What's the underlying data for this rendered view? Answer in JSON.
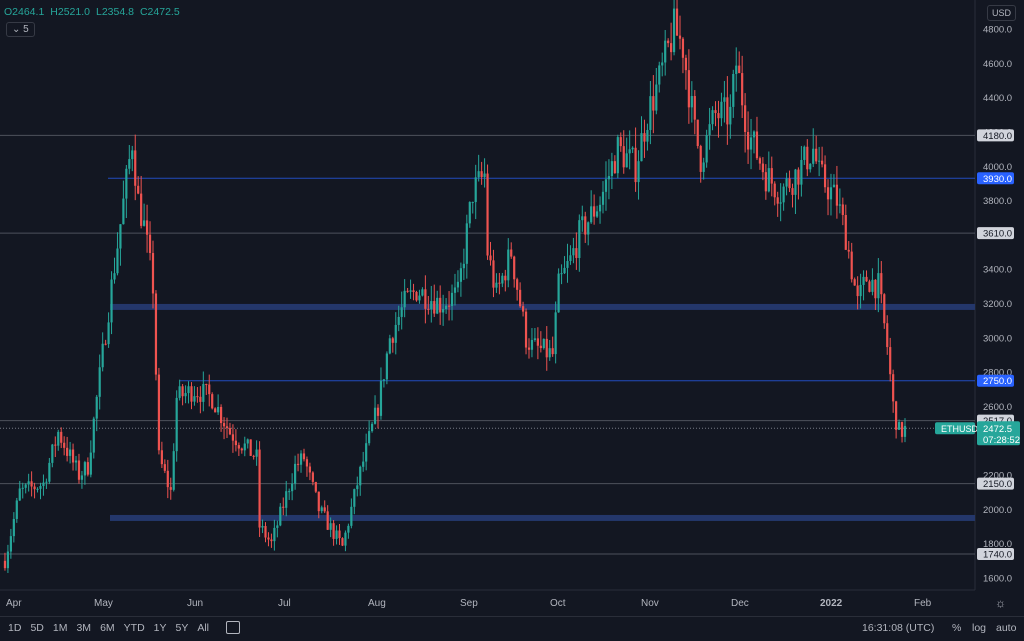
{
  "header": {
    "ohlc": {
      "o": "O2464.1",
      "h": "H2521.0",
      "l": "L2354.8",
      "c": "C2472.5"
    },
    "interval": "5",
    "currency": "USD"
  },
  "bottom_bar": {
    "ranges": [
      "1D",
      "5D",
      "1M",
      "3M",
      "6M",
      "YTD",
      "1Y",
      "5Y",
      "All"
    ],
    "clock": "16:31:08 (UTC)",
    "percent": "%",
    "log": "log",
    "auto": "auto"
  },
  "colors": {
    "up": "#26a69a",
    "down": "#ef5350",
    "bg": "#131722",
    "zone": "#24376b",
    "line": "#5d606b",
    "blue_line": "#2962ff"
  },
  "chart_data": {
    "type": "candlestick",
    "symbol": "ETHUSD",
    "ylim": [
      1500,
      4900
    ],
    "yticks": [
      1600,
      1800,
      2000,
      2200,
      2400,
      2600,
      2800,
      3000,
      3200,
      3400,
      3600,
      3800,
      4000,
      4200,
      4400,
      4600,
      4800
    ],
    "xlabels": [
      "Apr",
      "May",
      "Jun",
      "Jul",
      "Aug",
      "Sep",
      "Oct",
      "Nov",
      "Dec",
      "2022",
      "Feb"
    ],
    "price_labels": [
      {
        "value": 4180,
        "text": "4180.0",
        "style": "gray"
      },
      {
        "value": 3930,
        "text": "3930.0",
        "style": "blue"
      },
      {
        "value": 3610,
        "text": "3610.0",
        "style": "gray"
      },
      {
        "value": 2750,
        "text": "2750.0",
        "style": "blue"
      },
      {
        "value": 2517,
        "text": "2517.0",
        "style": "gray"
      },
      {
        "value": 2150,
        "text": "2150.0",
        "style": "gray"
      },
      {
        "value": 1740,
        "text": "1740.0",
        "style": "gray"
      }
    ],
    "zones": [
      {
        "value": 3180
      },
      {
        "value": 1950
      }
    ],
    "last_price": {
      "symbol": "ETHUSD",
      "value": "2472.5",
      "countdown": "07:28:52"
    },
    "key_closes": [
      [
        "2021-03-28",
        1700
      ],
      [
        "2021-04-02",
        2100
      ],
      [
        "2021-04-10",
        2150
      ],
      [
        "2021-04-15",
        2450
      ],
      [
        "2021-04-22",
        2200
      ],
      [
        "2021-04-25",
        2250
      ],
      [
        "2021-05-03",
        3300
      ],
      [
        "2021-05-10",
        4150
      ],
      [
        "2021-05-12",
        3800
      ],
      [
        "2021-05-14",
        3650
      ],
      [
        "2021-05-17",
        3300
      ],
      [
        "2021-05-19",
        2300
      ],
      [
        "2021-05-23",
        2100
      ],
      [
        "2021-05-25",
        2650
      ],
      [
        "2021-05-31",
        2700
      ],
      [
        "2021-06-06",
        2650
      ],
      [
        "2021-06-12",
        2450
      ],
      [
        "2021-06-21",
        2300
      ],
      [
        "2021-06-22",
        1900
      ],
      [
        "2021-06-26",
        1800
      ],
      [
        "2021-07-04",
        2250
      ],
      [
        "2021-07-07",
        2300
      ],
      [
        "2021-07-12",
        2000
      ],
      [
        "2021-07-20",
        1780
      ],
      [
        "2021-07-25",
        2150
      ],
      [
        "2021-08-01",
        2600
      ],
      [
        "2021-08-05",
        3000
      ],
      [
        "2021-08-10",
        3200
      ],
      [
        "2021-08-14",
        3280
      ],
      [
        "2021-08-22",
        3200
      ],
      [
        "2021-08-28",
        3250
      ],
      [
        "2021-09-02",
        3850
      ],
      [
        "2021-09-06",
        3950
      ],
      [
        "2021-09-07",
        3500
      ],
      [
        "2021-09-10",
        3250
      ],
      [
        "2021-09-15",
        3500
      ],
      [
        "2021-09-20",
        3000
      ],
      [
        "2021-09-22",
        2950
      ],
      [
        "2021-09-29",
        2900
      ],
      [
        "2021-10-01",
        3300
      ],
      [
        "2021-10-05",
        3450
      ],
      [
        "2021-10-08",
        3600
      ],
      [
        "2021-10-15",
        3800
      ],
      [
        "2021-10-21",
        4100
      ],
      [
        "2021-10-27",
        4000
      ],
      [
        "2021-10-31",
        4300
      ],
      [
        "2021-11-04",
        4500
      ],
      [
        "2021-11-09",
        4800
      ],
      [
        "2021-11-12",
        4700
      ],
      [
        "2021-11-16",
        4200
      ],
      [
        "2021-11-18",
        4050
      ],
      [
        "2021-11-23",
        4300
      ],
      [
        "2021-11-28",
        4300
      ],
      [
        "2021-11-30",
        4600
      ],
      [
        "2021-12-04",
        4200
      ],
      [
        "2021-12-10",
        3950
      ],
      [
        "2021-12-15",
        3850
      ],
      [
        "2021-12-20",
        3950
      ],
      [
        "2021-12-26",
        4100
      ],
      [
        "2021-12-28",
        3950
      ],
      [
        "2022-01-03",
        3800
      ],
      [
        "2022-01-06",
        3600
      ],
      [
        "2022-01-10",
        3200
      ],
      [
        "2022-01-13",
        3350
      ],
      [
        "2022-01-17",
        3300
      ],
      [
        "2022-01-20",
        2950
      ],
      [
        "2022-01-22",
        2600
      ],
      [
        "2022-01-24",
        2450
      ],
      [
        "2022-01-27",
        2472.5
      ]
    ],
    "grid": false,
    "legend": "none"
  }
}
